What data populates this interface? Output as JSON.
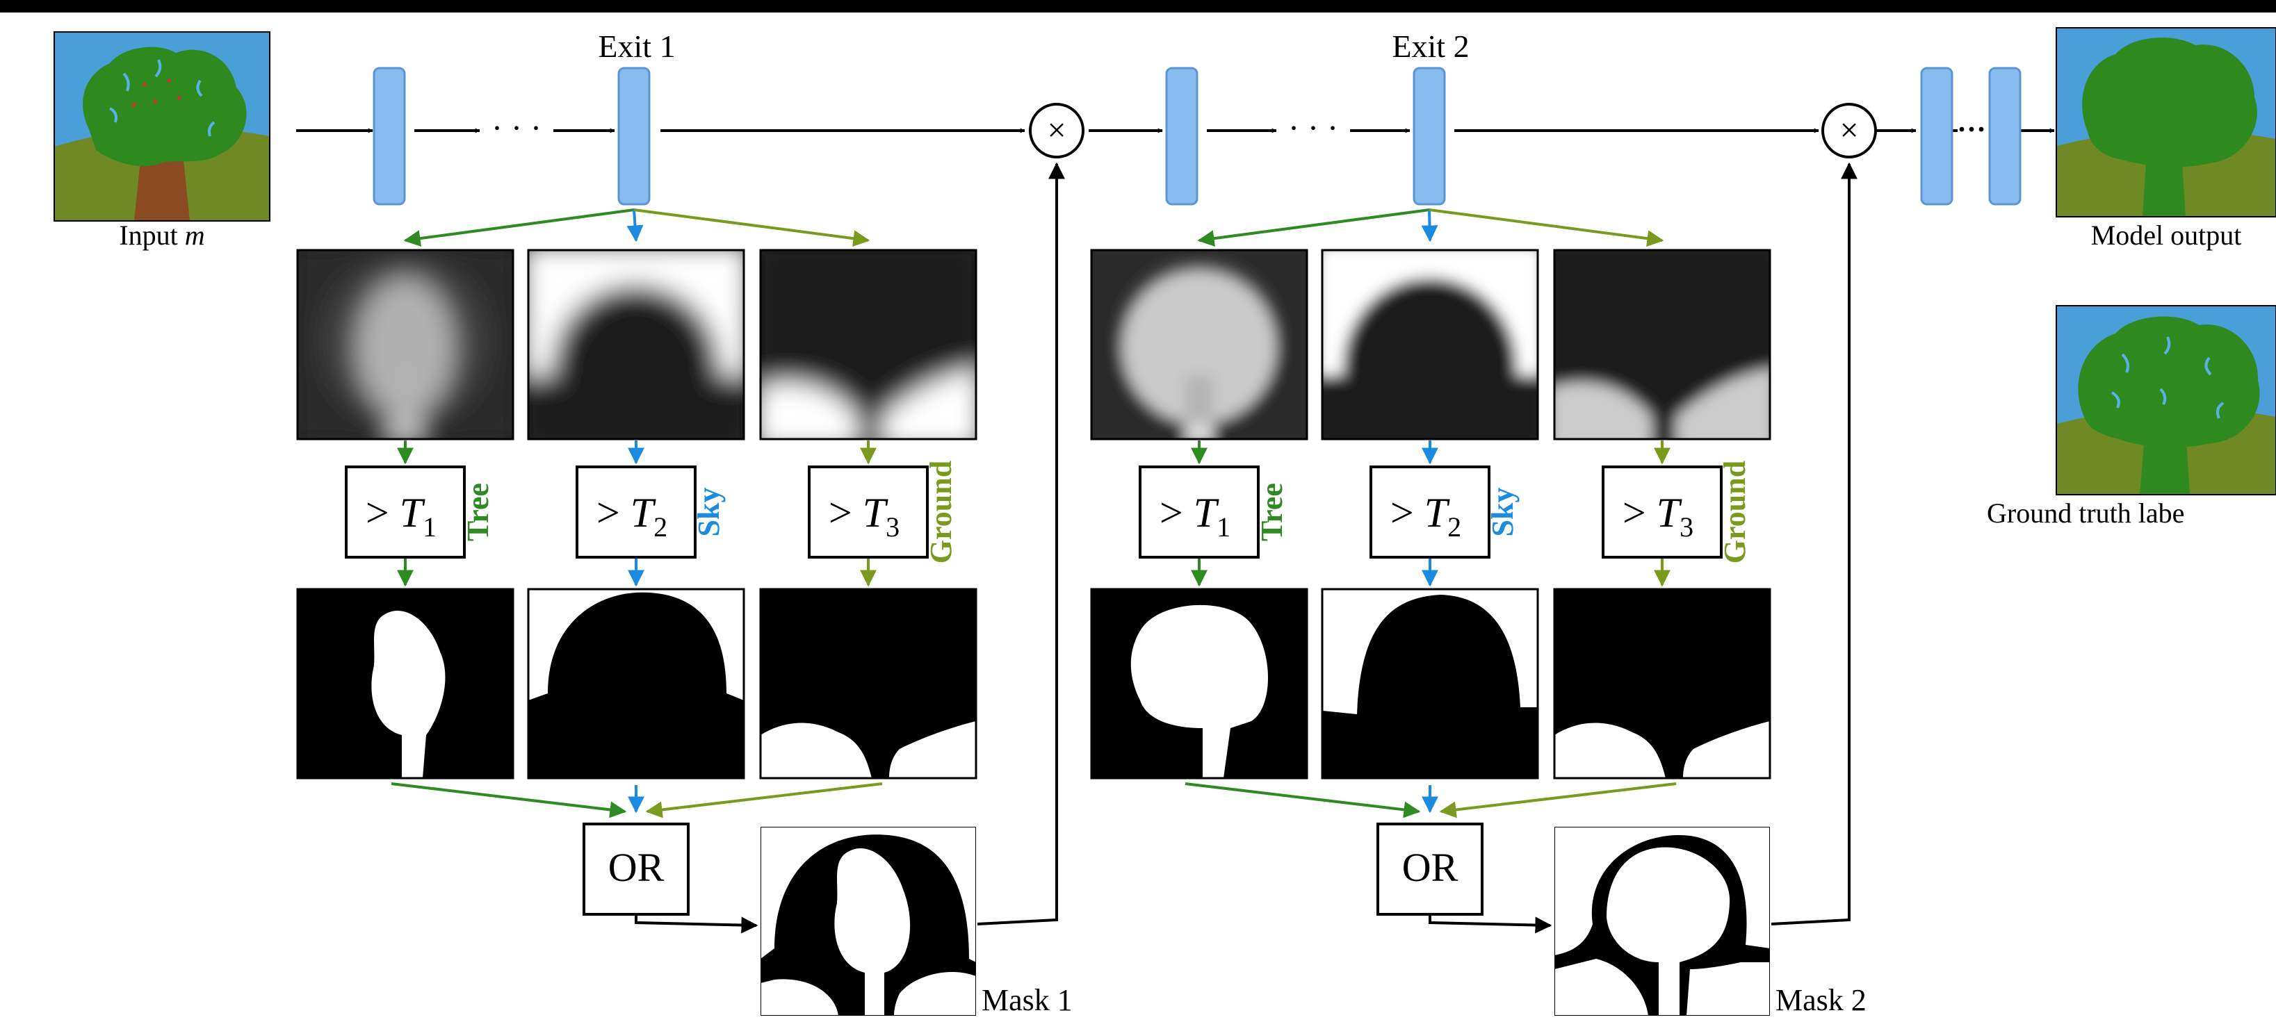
{
  "labels": {
    "input_prefix": "Input ",
    "input_var": "m",
    "exit1": "Exit 1",
    "exit2": "Exit 2",
    "model_output": "Model output",
    "ground_truth": "Ground truth labe",
    "mask1": "Mask 1",
    "mask2": "Mask 2",
    "or": "OR",
    "dots": "· · ·",
    "dots_small": "···",
    "times": "×"
  },
  "classes": [
    {
      "name": "Tree",
      "threshold_sub": "1"
    },
    {
      "name": "Sky",
      "threshold_sub": "2"
    },
    {
      "name": "Ground",
      "threshold_sub": "3"
    }
  ],
  "threshold_op": "> ",
  "threshold_var": "T",
  "colors": {
    "tree": "#2e8b22",
    "sky": "#1a8be0",
    "ground": "#7a9a1e",
    "layer_fill": "#88bbee",
    "layer_stroke": "#5a96d4",
    "img_sky": "#4a9fd8",
    "img_ground": "#6f8a24",
    "img_tree": "#2e8a1e",
    "img_trunk": "#8a4a22"
  }
}
